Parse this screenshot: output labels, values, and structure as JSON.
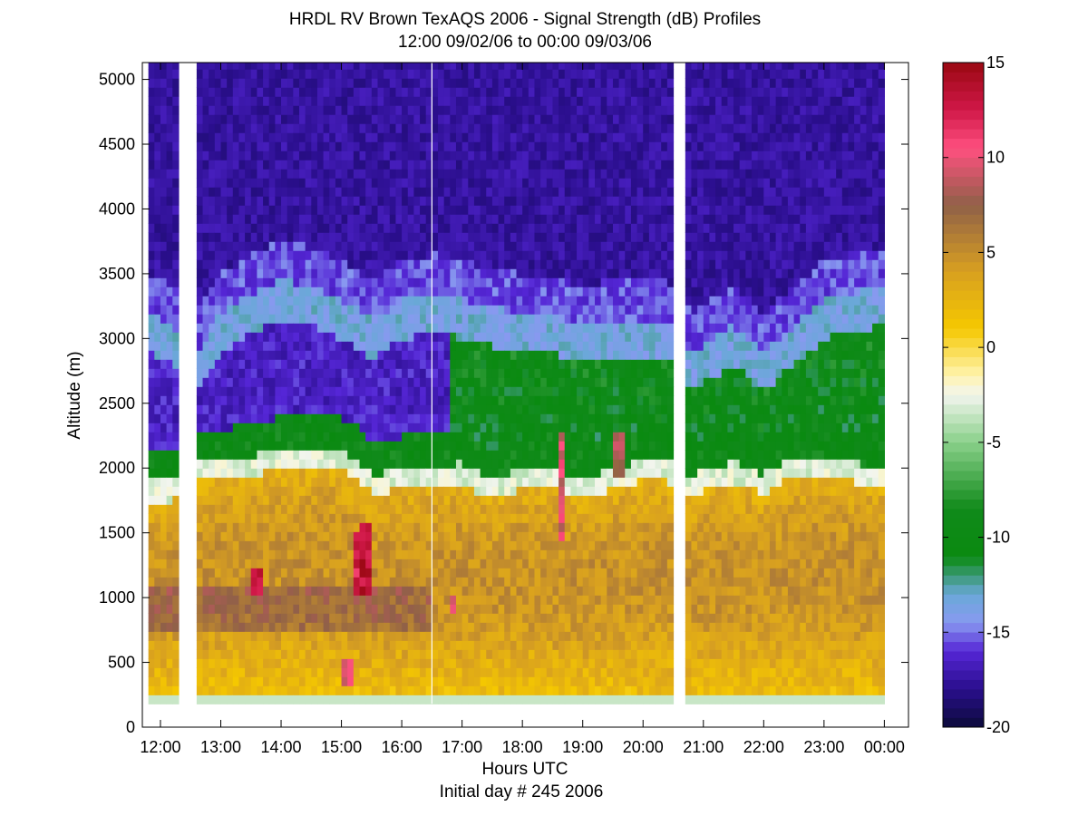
{
  "chart_data": {
    "type": "heatmap",
    "title": "HRDL RV Brown TexAQS 2006 - Signal Strength (dB) Profiles",
    "subtitle": "12:00 09/02/06 to 00:00 09/03/06",
    "xlabel": "Hours UTC",
    "xlabel2": "Initial day # 245  2006",
    "ylabel": "Altitude (m)",
    "x_range_hours": [
      11.7,
      24.4
    ],
    "ylim": [
      0,
      5130
    ],
    "x_ticks": [
      {
        "hour": 12,
        "label": "12:00"
      },
      {
        "hour": 13,
        "label": "13:00"
      },
      {
        "hour": 14,
        "label": "14:00"
      },
      {
        "hour": 15,
        "label": "15:00"
      },
      {
        "hour": 16,
        "label": "16:00"
      },
      {
        "hour": 17,
        "label": "17:00"
      },
      {
        "hour": 18,
        "label": "18:00"
      },
      {
        "hour": 19,
        "label": "19:00"
      },
      {
        "hour": 20,
        "label": "20:00"
      },
      {
        "hour": 21,
        "label": "21:00"
      },
      {
        "hour": 22,
        "label": "22:00"
      },
      {
        "hour": 23,
        "label": "23:00"
      },
      {
        "hour": 24,
        "label": "00:00"
      }
    ],
    "y_ticks": [
      0,
      500,
      1000,
      1500,
      2000,
      2500,
      3000,
      3500,
      4000,
      4500,
      5000
    ],
    "colorbar": {
      "label_ticks": [
        15,
        10,
        5,
        0,
        -5,
        -10,
        -15,
        -20
      ],
      "range": [
        -20,
        15
      ]
    },
    "data_start_hour": 11.8,
    "data_end_hour": 24.0,
    "data_gaps_hours": [
      [
        12.35,
        12.55
      ],
      [
        20.5,
        20.7
      ]
    ],
    "min_altitude_m": 180,
    "max_altitude_m": 5130,
    "aerosol_top_m": [
      [
        11.8,
        1900
      ],
      [
        12.2,
        1900
      ],
      [
        12.6,
        2050
      ],
      [
        13.0,
        2050
      ],
      [
        13.5,
        2100
      ],
      [
        14.0,
        2150
      ],
      [
        14.5,
        2150
      ],
      [
        15.0,
        2150
      ],
      [
        15.3,
        2050
      ],
      [
        15.5,
        1950
      ],
      [
        16.0,
        2000
      ],
      [
        16.5,
        2000
      ],
      [
        17.0,
        2050
      ],
      [
        17.5,
        1900
      ],
      [
        18.0,
        2000
      ],
      [
        18.5,
        2000
      ],
      [
        19.0,
        1900
      ],
      [
        19.5,
        2000
      ],
      [
        20.0,
        2050
      ],
      [
        20.4,
        2050
      ],
      [
        20.8,
        1950
      ],
      [
        21.5,
        2050
      ],
      [
        22.0,
        1950
      ],
      [
        22.5,
        2100
      ],
      [
        23.0,
        2100
      ],
      [
        23.5,
        2050
      ],
      [
        24.0,
        2000
      ]
    ],
    "residual_layer_top_m": [
      [
        11.8,
        3200
      ],
      [
        12.2,
        3100
      ],
      [
        12.6,
        2900
      ],
      [
        13.0,
        3200
      ],
      [
        13.5,
        3350
      ],
      [
        14.0,
        3450
      ],
      [
        14.5,
        3400
      ],
      [
        15.0,
        3300
      ],
      [
        15.5,
        3150
      ],
      [
        16.0,
        3300
      ],
      [
        16.5,
        3350
      ],
      [
        17.0,
        3300
      ],
      [
        17.5,
        3250
      ],
      [
        18.0,
        3200
      ],
      [
        18.5,
        3200
      ],
      [
        19.0,
        3100
      ],
      [
        19.5,
        3150
      ],
      [
        20.0,
        3150
      ],
      [
        20.4,
        3150
      ],
      [
        20.8,
        2900
      ],
      [
        21.5,
        3100
      ],
      [
        22.0,
        2900
      ],
      [
        22.5,
        3100
      ],
      [
        23.0,
        3300
      ],
      [
        23.5,
        3350
      ],
      [
        24.0,
        3400
      ]
    ],
    "high_signal_patches": [
      {
        "hour": 13.6,
        "alt_from_m": 1000,
        "alt_to_m": 1250,
        "db": 15
      },
      {
        "hour": 15.25,
        "alt_from_m": 1050,
        "alt_to_m": 1500,
        "db": 14
      },
      {
        "hour": 15.4,
        "alt_from_m": 1050,
        "alt_to_m": 1550,
        "db": 15
      },
      {
        "hour": 15.1,
        "alt_from_m": 350,
        "alt_to_m": 500,
        "db": 11
      },
      {
        "hour": 16.85,
        "alt_from_m": 900,
        "alt_to_m": 1000,
        "db": 11
      },
      {
        "hour": 18.65,
        "alt_from_m": 1450,
        "alt_to_m": 2250,
        "db": 11
      },
      {
        "hour": 19.6,
        "alt_from_m": 1900,
        "alt_to_m": 2250,
        "db": 10
      }
    ]
  }
}
